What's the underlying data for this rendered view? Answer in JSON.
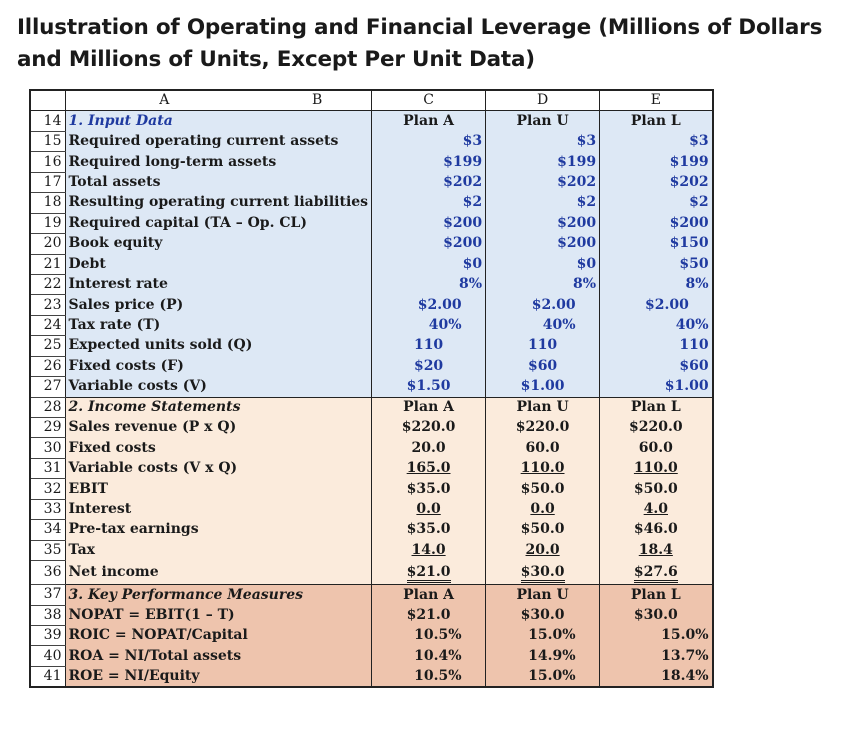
{
  "title": "Illustration of Operating and Financial Leverage (Millions of Dollars and Millions of Units, Except Per Unit Data)",
  "col_headers": {
    "a": "A",
    "b": "B",
    "c": "C",
    "d": "D",
    "e": "E"
  },
  "rows": {
    "r14": {
      "n": "14",
      "label": "1. Input Data",
      "c": "Plan A",
      "d": "Plan U",
      "e": "Plan L"
    },
    "r15": {
      "n": "15",
      "label": "Required operating current assets",
      "c": "$3",
      "d": "$3",
      "e": "$3"
    },
    "r16": {
      "n": "16",
      "label": "Required long-term assets",
      "c": "$199",
      "d": "$199",
      "e": "$199"
    },
    "r17": {
      "n": "17",
      "label": "Total assets",
      "c": "$202",
      "d": "$202",
      "e": "$202"
    },
    "r18": {
      "n": "18",
      "label": "Resulting operating current liabilities",
      "c": "$2",
      "d": "$2",
      "e": "$2"
    },
    "r19": {
      "n": "19",
      "label": "Required capital (TA – Op. CL)",
      "c": "$200",
      "d": "$200",
      "e": "$200"
    },
    "r20": {
      "n": "20",
      "label": "Book equity",
      "c": "$200",
      "d": "$200",
      "e": "$150"
    },
    "r21": {
      "n": "21",
      "label": "Debt",
      "c": "$0",
      "d": "$0",
      "e": "$50"
    },
    "r22": {
      "n": "22",
      "label": "Interest rate",
      "c": "8%",
      "d": "8%",
      "e": "8%"
    },
    "r23": {
      "n": "23",
      "label": "Sales price (P)",
      "c": "$2.00",
      "d": "$2.00",
      "e": "$2.00"
    },
    "r24": {
      "n": "24",
      "label": "Tax rate (T)",
      "c": "40%",
      "d": "40%",
      "e": "40%"
    },
    "r25": {
      "n": "25",
      "label": "Expected units sold (Q)",
      "c": "110",
      "d": "110",
      "e": "110"
    },
    "r26": {
      "n": "26",
      "label": "Fixed costs (F)",
      "c": "$20",
      "d": "$60",
      "e": "$60"
    },
    "r27": {
      "n": "27",
      "label": "Variable costs (V)",
      "c": "$1.50",
      "d": "$1.00",
      "e": "$1.00"
    },
    "r28": {
      "n": "28",
      "label": "2. Income Statements",
      "c": "Plan A",
      "d": "Plan U",
      "e": "Plan L"
    },
    "r29": {
      "n": "29",
      "label": "Sales revenue (P x Q)",
      "c": "$220.0",
      "d": "$220.0",
      "e": "$220.0"
    },
    "r30": {
      "n": "30",
      "label": "Fixed costs",
      "c": "20.0",
      "d": "60.0",
      "e": "60.0"
    },
    "r31": {
      "n": "31",
      "label": "Variable costs (V x Q)",
      "c": "165.0",
      "d": "110.0",
      "e": "110.0"
    },
    "r32": {
      "n": "32",
      "label": "EBIT",
      "c": "$35.0",
      "d": "$50.0",
      "e": "$50.0"
    },
    "r33": {
      "n": "33",
      "label": "Interest",
      "c": "0.0",
      "d": "0.0",
      "e": "4.0"
    },
    "r34": {
      "n": "34",
      "label": "Pre-tax earnings",
      "c": "$35.0",
      "d": "$50.0",
      "e": "$46.0"
    },
    "r35": {
      "n": "35",
      "label": "Tax",
      "c": "14.0",
      "d": "20.0",
      "e": "18.4"
    },
    "r36": {
      "n": "36",
      "label": "Net income",
      "c": "$21.0",
      "d": "$30.0",
      "e": "$27.6"
    },
    "r37": {
      "n": "37",
      "label": "3. Key Performance Measures",
      "c": "Plan A",
      "d": "Plan U",
      "e": "Plan L"
    },
    "r38": {
      "n": "38",
      "label": "NOPAT = EBIT(1 – T)",
      "c": "$21.0",
      "d": "$30.0",
      "e": "$30.0"
    },
    "r39": {
      "n": "39",
      "label": "ROIC = NOPAT/Capital",
      "c": "10.5%",
      "d": "15.0%",
      "e": "15.0%"
    },
    "r40": {
      "n": "40",
      "label": "ROA = NI/Total assets",
      "c": "10.4%",
      "d": "14.9%",
      "e": "13.7%"
    },
    "r41": {
      "n": "41",
      "label": "ROE = NI/Equity",
      "c": "10.5%",
      "d": "15.0%",
      "e": "18.4%"
    }
  },
  "colors": {
    "section1": "#dde8f5",
    "section2": "#fbebdc",
    "section3": "#eec4ad",
    "header_text": "#1f3aa0"
  }
}
